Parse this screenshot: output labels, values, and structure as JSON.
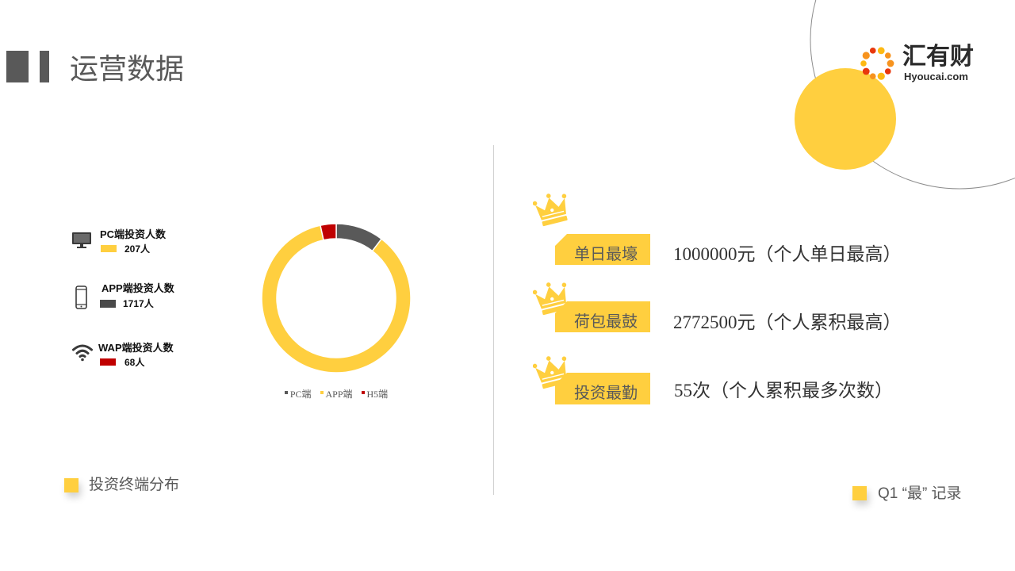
{
  "colors": {
    "accent": "#FFCF3F",
    "dark": "#595959",
    "text": "#333333",
    "divider": "#D0D0D0",
    "ring": "#8C8C8C"
  },
  "header": {
    "title": "运营数据"
  },
  "logo": {
    "icon": "sun-dots-logo-icon",
    "name": "汇有财",
    "domain": "Hyoucai.com",
    "colors": [
      "#F7931E",
      "#E8380D",
      "#FDB913"
    ]
  },
  "terminals": {
    "items": [
      {
        "icon": "monitor-icon",
        "label": "PC端投资人数",
        "value": "207人",
        "color": "#FFCF3F"
      },
      {
        "icon": "phone-icon",
        "label": "APP端投资人数",
        "value": "1717人",
        "color": "#4A4A4A"
      },
      {
        "icon": "wifi-icon",
        "label": "WAP端投资人数",
        "value": "68人",
        "color": "#C00000"
      }
    ],
    "caption": "投资终端分布"
  },
  "chart_data": {
    "type": "pie",
    "donut": true,
    "categories": [
      "PC端",
      "APP端",
      "H5端"
    ],
    "values": [
      207,
      1717,
      68
    ],
    "colors": [
      "#595959",
      "#FFCF3F",
      "#C00000"
    ],
    "legend": "bottom"
  },
  "records": {
    "icon": "crown-icon",
    "items": [
      {
        "label": "单日最壕",
        "value": "1000000元（个人单日最高）"
      },
      {
        "label": "荷包最鼓",
        "value": "2772500元（个人累积最高）"
      },
      {
        "label": "投资最勤",
        "value": "55次（个人累积最多次数）"
      }
    ],
    "caption": "Q1 “最” 记录"
  }
}
